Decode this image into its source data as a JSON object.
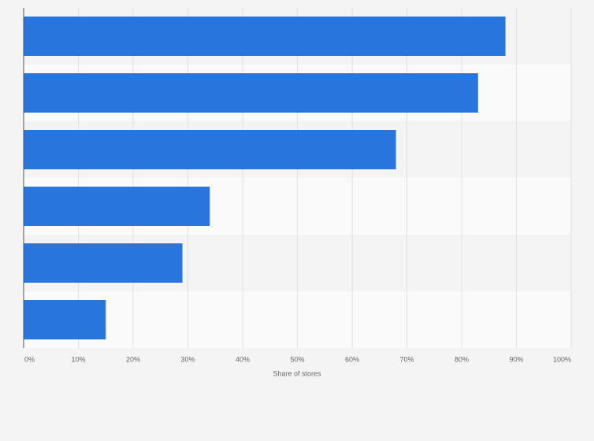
{
  "chart_data": {
    "type": "bar",
    "orientation": "horizontal",
    "categories": [
      null,
      null,
      null,
      null,
      null,
      null
    ],
    "values": [
      88,
      83,
      68,
      34,
      29,
      15
    ],
    "color": "#2876dd",
    "xlabel": "Share of stores",
    "xlim": [
      0,
      100
    ],
    "xticks": [
      {
        "value": 0,
        "label": "0%"
      },
      {
        "value": 10,
        "label": "10%"
      },
      {
        "value": 20,
        "label": "20%"
      },
      {
        "value": 30,
        "label": "30%"
      },
      {
        "value": 40,
        "label": "40%"
      },
      {
        "value": 50,
        "label": "50%"
      },
      {
        "value": 60,
        "label": "60%"
      },
      {
        "value": 70,
        "label": "70%"
      },
      {
        "value": 80,
        "label": "80%"
      },
      {
        "value": 90,
        "label": "90%"
      },
      {
        "value": 100,
        "label": "100%"
      }
    ],
    "grid": true
  }
}
